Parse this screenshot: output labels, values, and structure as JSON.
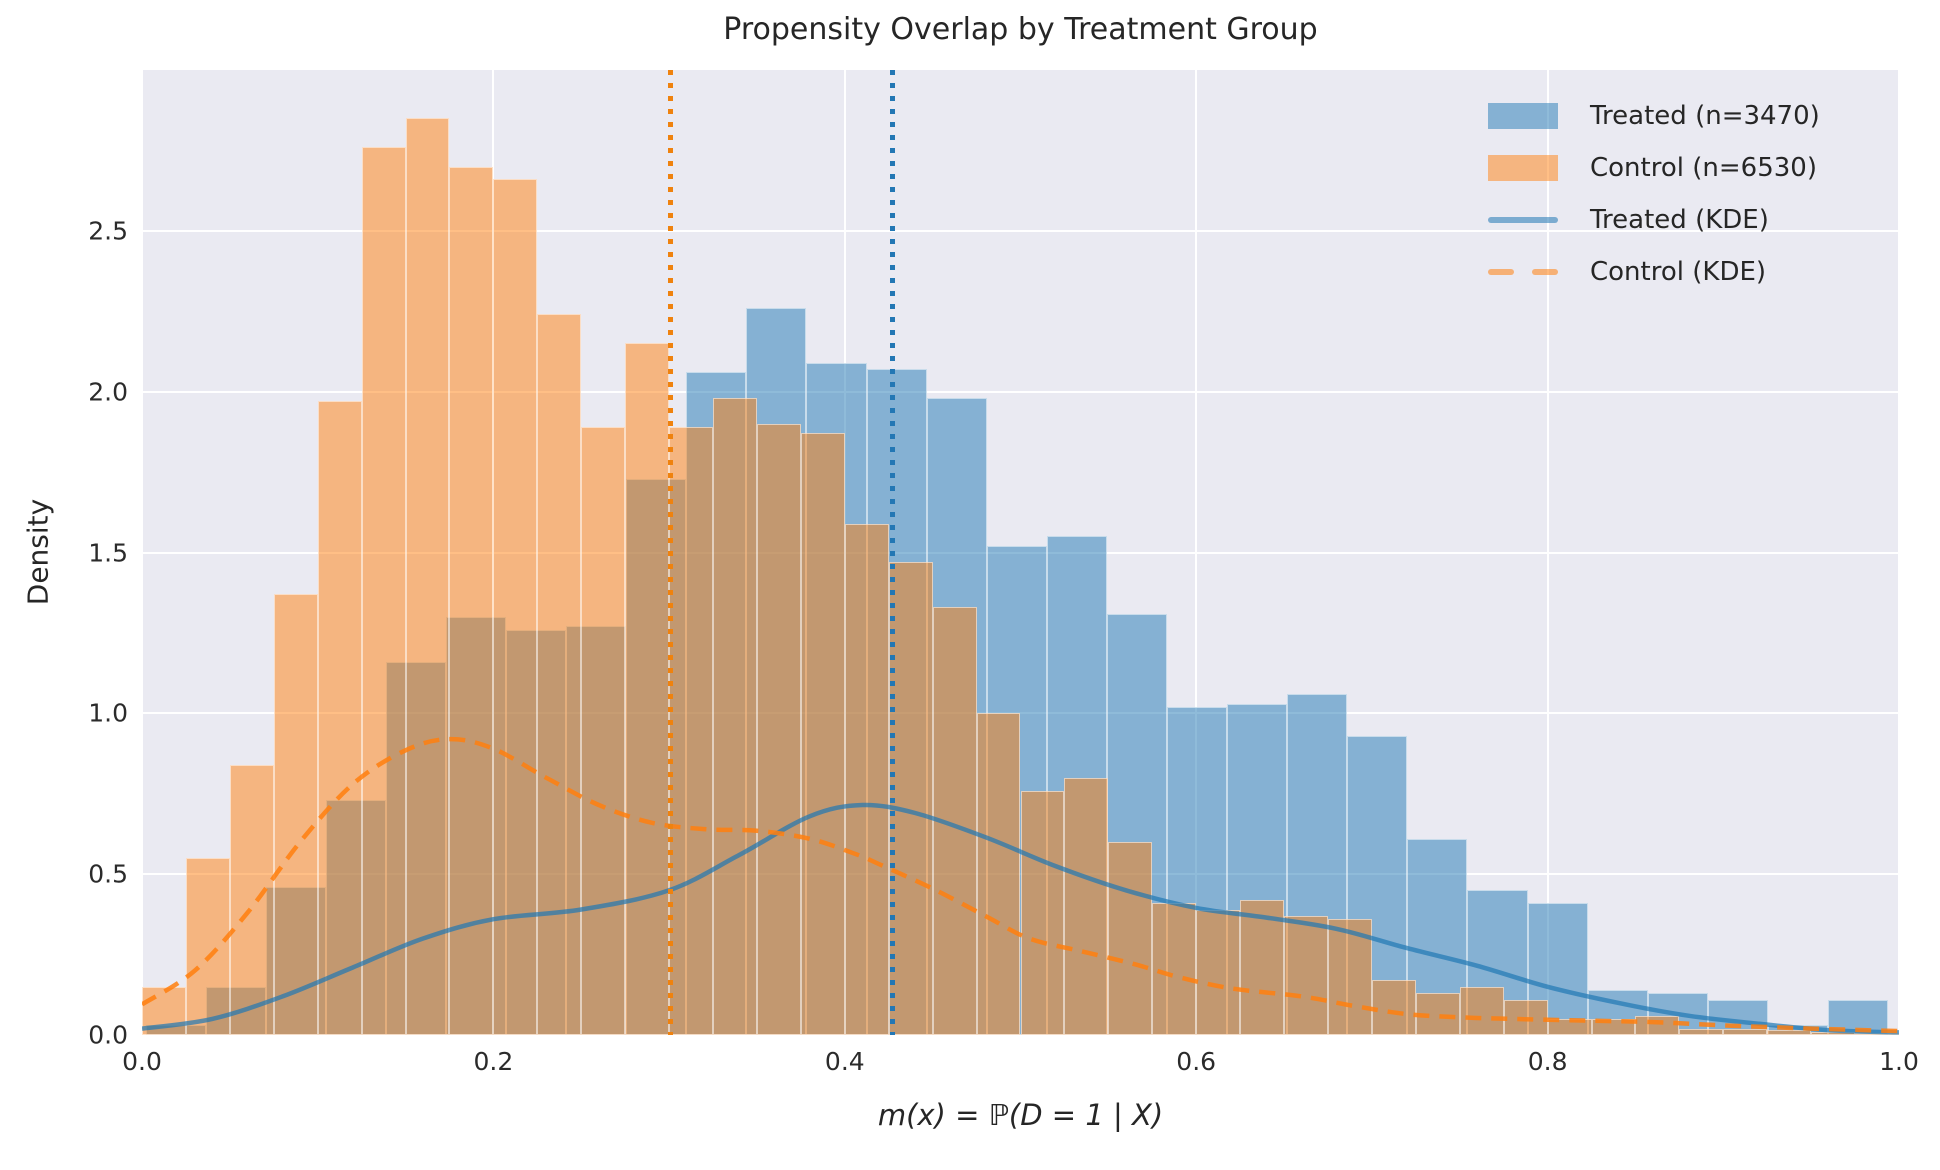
{
  "title": "Propensity Overlap by Treatment Group",
  "chart_data": {
    "type": "histogram+kde",
    "title": "Propensity Overlap by Treatment Group",
    "xlabel": "m(x) = ℙ(D = 1 | X)",
    "ylabel": "Density",
    "xlim": [
      0.0,
      1.0
    ],
    "ylim": [
      0.0,
      3.0
    ],
    "grid": true,
    "background": "#eaeaf2",
    "xticks": [
      {
        "v": 0.0,
        "label": "0.0"
      },
      {
        "v": 0.2,
        "label": "0.2"
      },
      {
        "v": 0.4,
        "label": "0.4"
      },
      {
        "v": 0.6,
        "label": "0.6"
      },
      {
        "v": 0.8,
        "label": "0.8"
      },
      {
        "v": 1.0,
        "label": "1.0"
      }
    ],
    "yticks": [
      {
        "v": 0.0,
        "label": "0.0"
      },
      {
        "v": 0.5,
        "label": "0.5"
      },
      {
        "v": 1.0,
        "label": "1.0"
      },
      {
        "v": 1.5,
        "label": "1.5"
      },
      {
        "v": 2.0,
        "label": "2.0"
      },
      {
        "v": 2.5,
        "label": "2.5"
      }
    ],
    "legend": {
      "position": "upper-right",
      "entries": [
        {
          "label": "Treated (n=3470)",
          "type": "patch",
          "color": "rgba(31,119,180,0.5)"
        },
        {
          "label": "Control (n=6530)",
          "type": "patch",
          "color": "rgba(255,127,14,0.5)"
        },
        {
          "label": "Treated (KDE)",
          "type": "line",
          "color": "rgba(31,119,180,0.55)"
        },
        {
          "label": "Control (KDE)",
          "type": "dashed",
          "color": "rgba(255,127,14,0.55)"
        }
      ]
    },
    "series": [
      {
        "name": "Treated (n=3470)",
        "group": "treated",
        "type": "histogram",
        "stat": "density",
        "color": "rgba(31,119,180,0.5)",
        "bin_start": 0.002,
        "bin_width": 0.0342,
        "heights": [
          0.03,
          0.15,
          0.46,
          0.73,
          1.16,
          1.3,
          1.26,
          1.27,
          1.73,
          2.06,
          2.26,
          2.09,
          2.07,
          1.98,
          1.52,
          1.55,
          1.31,
          1.02,
          1.03,
          1.06,
          0.93,
          0.61,
          0.45,
          0.41,
          0.14,
          0.13,
          0.11,
          0.03,
          0.11
        ]
      },
      {
        "name": "Control (n=6530)",
        "group": "control",
        "type": "histogram",
        "stat": "density",
        "color": "rgba(255,127,14,0.5)",
        "bin_start": 0.0,
        "bin_width": 0.025,
        "heights": [
          0.15,
          0.55,
          0.84,
          1.37,
          1.97,
          2.76,
          2.85,
          2.7,
          2.66,
          2.24,
          1.89,
          2.15,
          1.89,
          1.98,
          1.9,
          1.87,
          1.59,
          1.47,
          1.33,
          1.0,
          0.76,
          0.8,
          0.6,
          0.41,
          0.39,
          0.42,
          0.37,
          0.36,
          0.17,
          0.13,
          0.15,
          0.11,
          0.05,
          0.05,
          0.06,
          0.02,
          0.02,
          0.015,
          0.01,
          0.005
        ]
      },
      {
        "name": "Treated (KDE)",
        "group": "treated",
        "type": "kde-line",
        "style": "solid",
        "color": "rgba(31,119,180,0.7)",
        "points": [
          [
            0.0,
            0.02
          ],
          [
            0.04,
            0.05
          ],
          [
            0.08,
            0.12
          ],
          [
            0.12,
            0.21
          ],
          [
            0.16,
            0.3
          ],
          [
            0.2,
            0.36
          ],
          [
            0.25,
            0.39
          ],
          [
            0.3,
            0.45
          ],
          [
            0.34,
            0.56
          ],
          [
            0.38,
            0.68
          ],
          [
            0.41,
            0.715
          ],
          [
            0.44,
            0.69
          ],
          [
            0.48,
            0.615
          ],
          [
            0.52,
            0.525
          ],
          [
            0.56,
            0.45
          ],
          [
            0.6,
            0.395
          ],
          [
            0.64,
            0.365
          ],
          [
            0.68,
            0.33
          ],
          [
            0.72,
            0.27
          ],
          [
            0.76,
            0.215
          ],
          [
            0.8,
            0.15
          ],
          [
            0.84,
            0.1
          ],
          [
            0.88,
            0.06
          ],
          [
            0.92,
            0.035
          ],
          [
            0.96,
            0.015
          ],
          [
            1.0,
            0.008
          ]
        ]
      },
      {
        "name": "Control (KDE)",
        "group": "control",
        "type": "kde-line",
        "style": "dashed",
        "color": "rgba(255,127,14,0.85)",
        "points": [
          [
            0.0,
            0.095
          ],
          [
            0.03,
            0.2
          ],
          [
            0.06,
            0.38
          ],
          [
            0.09,
            0.6
          ],
          [
            0.12,
            0.78
          ],
          [
            0.15,
            0.885
          ],
          [
            0.175,
            0.92
          ],
          [
            0.2,
            0.89
          ],
          [
            0.23,
            0.8
          ],
          [
            0.26,
            0.715
          ],
          [
            0.29,
            0.66
          ],
          [
            0.32,
            0.64
          ],
          [
            0.35,
            0.635
          ],
          [
            0.38,
            0.61
          ],
          [
            0.405,
            0.565
          ],
          [
            0.42,
            0.53
          ],
          [
            0.45,
            0.455
          ],
          [
            0.48,
            0.37
          ],
          [
            0.505,
            0.3
          ],
          [
            0.535,
            0.26
          ],
          [
            0.565,
            0.22
          ],
          [
            0.59,
            0.18
          ],
          [
            0.62,
            0.145
          ],
          [
            0.66,
            0.12
          ],
          [
            0.69,
            0.09
          ],
          [
            0.72,
            0.065
          ],
          [
            0.75,
            0.055
          ],
          [
            0.78,
            0.05
          ],
          [
            0.82,
            0.045
          ],
          [
            0.86,
            0.04
          ],
          [
            0.9,
            0.03
          ],
          [
            0.95,
            0.02
          ],
          [
            1.0,
            0.012
          ]
        ]
      }
    ],
    "vlines": [
      {
        "x": 0.301,
        "color": "#ef820e",
        "style": "dotted",
        "group": "control"
      },
      {
        "x": 0.427,
        "color": "#2377b4",
        "style": "dotted",
        "group": "treated"
      }
    ]
  }
}
